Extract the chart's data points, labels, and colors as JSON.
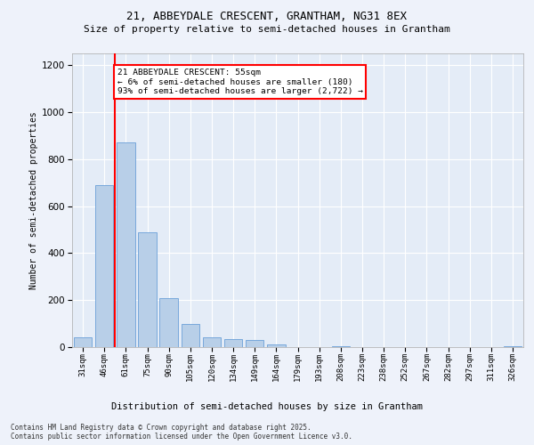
{
  "title_line1": "21, ABBEYDALE CRESCENT, GRANTHAM, NG31 8EX",
  "title_line2": "Size of property relative to semi-detached houses in Grantham",
  "xlabel": "Distribution of semi-detached houses by size in Grantham",
  "ylabel": "Number of semi-detached properties",
  "categories": [
    "31sqm",
    "46sqm",
    "61sqm",
    "75sqm",
    "90sqm",
    "105sqm",
    "120sqm",
    "134sqm",
    "149sqm",
    "164sqm",
    "179sqm",
    "193sqm",
    "208sqm",
    "223sqm",
    "238sqm",
    "252sqm",
    "267sqm",
    "282sqm",
    "297sqm",
    "311sqm",
    "326sqm"
  ],
  "values": [
    40,
    690,
    870,
    490,
    210,
    100,
    40,
    35,
    30,
    10,
    0,
    0,
    5,
    0,
    0,
    0,
    0,
    0,
    0,
    0,
    3
  ],
  "bar_color": "#b8cfe8",
  "bar_edge_color": "#6a9fd8",
  "vline_color": "red",
  "vline_position": 1.5,
  "annotation_title": "21 ABBEYDALE CRESCENT: 55sqm",
  "annotation_line2": "← 6% of semi-detached houses are smaller (180)",
  "annotation_line3": "93% of semi-detached houses are larger (2,722) →",
  "annotation_box_color": "white",
  "annotation_border_color": "red",
  "ylim": [
    0,
    1250
  ],
  "yticks": [
    0,
    200,
    400,
    600,
    800,
    1000,
    1200
  ],
  "footer_line1": "Contains HM Land Registry data © Crown copyright and database right 2025.",
  "footer_line2": "Contains public sector information licensed under the Open Government Licence v3.0.",
  "bg_color": "#eef2fa",
  "plot_bg_color": "#e4ecf7"
}
